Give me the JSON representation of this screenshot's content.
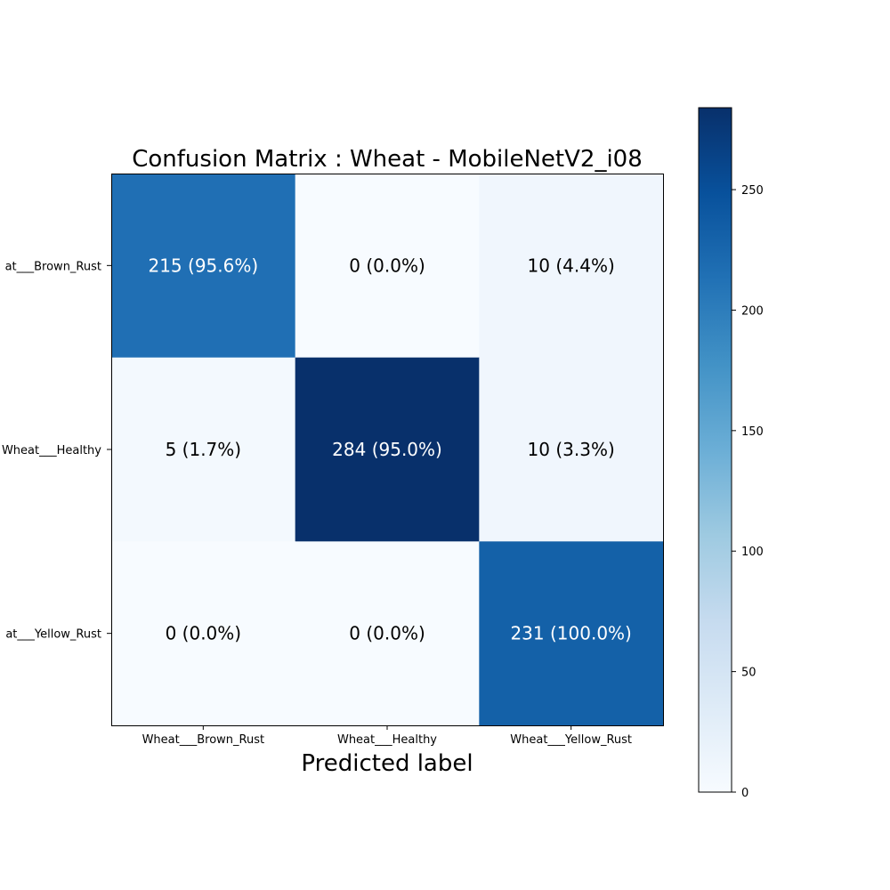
{
  "chart_data": {
    "type": "heatmap",
    "title": "Confusion Matrix : Wheat - MobileNetV2_i08",
    "xlabel": "Predicted label",
    "ylabel": "",
    "x_categories": [
      "Wheat___Brown_Rust",
      "Wheat___Healthy",
      "Wheat___Yellow_Rust"
    ],
    "y_categories": [
      "Wheat___Brown_Rust",
      "Wheat___Healthy",
      "Wheat___Yellow_Rust"
    ],
    "y_tick_labels_visible": [
      "at___Brown_Rust",
      "Wheat___Healthy",
      "at___Yellow_Rust"
    ],
    "values": [
      [
        215,
        0,
        10
      ],
      [
        5,
        284,
        10
      ],
      [
        0,
        0,
        231
      ]
    ],
    "cell_labels": [
      [
        "215 (95.6%)",
        "0 (0.0%)",
        "10 (4.4%)"
      ],
      [
        "5 (1.7%)",
        "284 (95.0%)",
        "10 (3.3%)"
      ],
      [
        "0 (0.0%)",
        "0 (0.0%)",
        "231 (100.0%)"
      ]
    ],
    "colorscale": "Blues",
    "colorbar": {
      "min": 0,
      "max": 284,
      "ticks": [
        0,
        50,
        100,
        150,
        200,
        250
      ],
      "tick_labels": [
        "0",
        "50",
        "100",
        "150",
        "200",
        "250"
      ]
    },
    "grid": false
  }
}
